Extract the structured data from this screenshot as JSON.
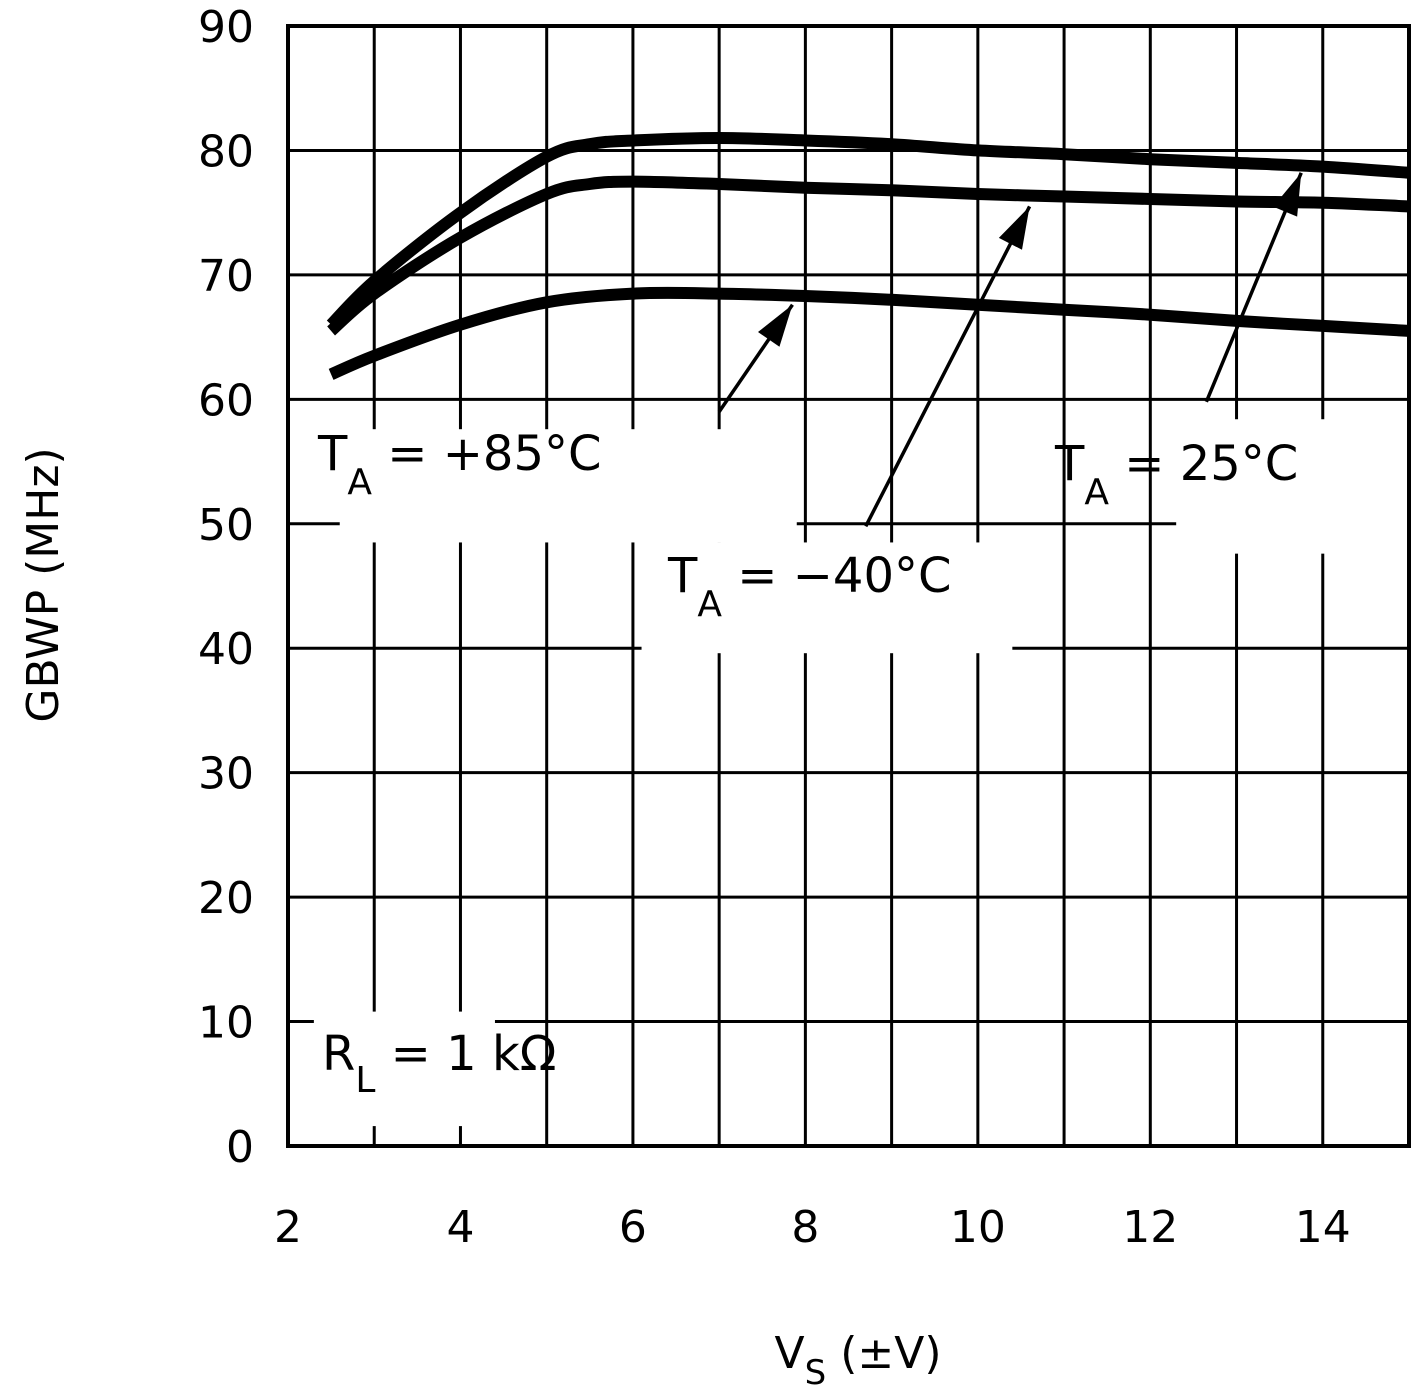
{
  "chart_data": {
    "type": "line",
    "xlabel": {
      "main": "V",
      "sub": "S",
      "suffix": " (±V)"
    },
    "ylabel": "GBWP (MHz)",
    "xlim": [
      2,
      15
    ],
    "ylim": [
      0,
      90
    ],
    "xticks": [
      2,
      4,
      6,
      8,
      10,
      12,
      14
    ],
    "yticks": [
      0,
      10,
      20,
      30,
      40,
      50,
      60,
      70,
      80,
      90
    ],
    "xgrid": [
      3,
      4,
      5,
      6,
      7,
      8,
      9,
      10,
      11,
      12,
      13,
      14
    ],
    "ygrid": [
      10,
      20,
      30,
      40,
      50,
      60,
      70,
      80
    ],
    "grid": true,
    "series": [
      {
        "label": {
          "main": "T",
          "sub": "A",
          "suffix": " = 25°C"
        },
        "x": [
          2.5,
          3,
          4,
          5,
          5.5,
          6,
          7,
          8,
          9,
          10,
          11,
          12,
          13,
          14,
          15
        ],
        "y": [
          66,
          69.5,
          75,
          79.5,
          80.5,
          80.8,
          81,
          80.8,
          80.5,
          80,
          79.7,
          79.3,
          79,
          78.7,
          78.2
        ]
      },
      {
        "label": {
          "main": "T",
          "sub": "A",
          "suffix": " = −40°C"
        },
        "x": [
          2.5,
          3,
          4,
          5,
          5.5,
          6,
          7,
          8,
          9,
          10,
          11,
          12,
          13,
          14,
          15
        ],
        "y": [
          65.5,
          68.5,
          73,
          76.5,
          77.3,
          77.5,
          77.3,
          77,
          76.8,
          76.5,
          76.3,
          76.1,
          75.9,
          75.8,
          75.5
        ]
      },
      {
        "label": {
          "main": "T",
          "sub": "A",
          "suffix": " = +85°C"
        },
        "x": [
          2.5,
          3,
          4,
          5,
          6,
          7,
          8,
          9,
          10,
          11,
          12,
          13,
          14,
          15
        ],
        "y": [
          62,
          63.5,
          66,
          67.8,
          68.5,
          68.5,
          68.3,
          68,
          67.6,
          67.2,
          66.8,
          66.3,
          65.9,
          65.5
        ]
      }
    ],
    "annotations": [
      {
        "main": "R",
        "sub": "L",
        "suffix": " = 1 kΩ"
      }
    ]
  }
}
